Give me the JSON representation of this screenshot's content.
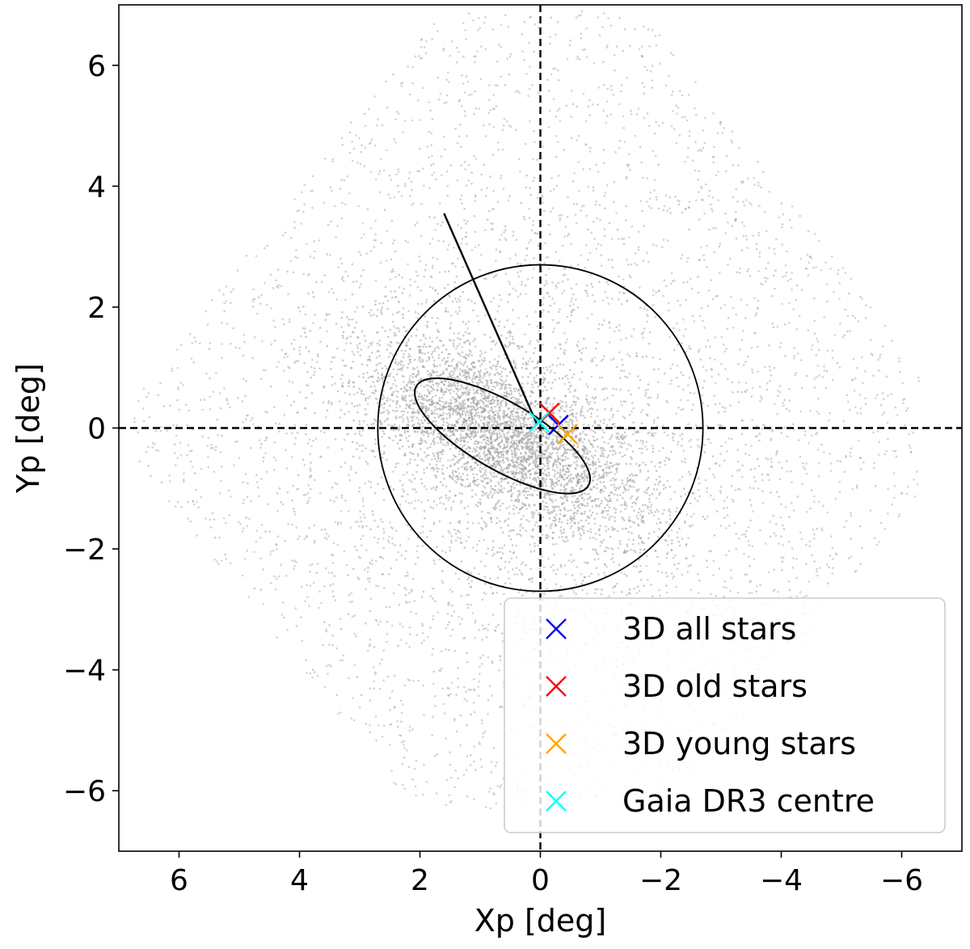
{
  "chart_data": {
    "type": "scatter",
    "xlabel": "Xp [deg]",
    "ylabel": "Yp [deg]",
    "xlim": [
      7,
      -7
    ],
    "ylim": [
      -7,
      7
    ],
    "x_inverted": true,
    "grid": false,
    "legend_position": "lower-right",
    "xticks": [
      {
        "value": 6,
        "label": "6"
      },
      {
        "value": 4,
        "label": "4"
      },
      {
        "value": 2,
        "label": "2"
      },
      {
        "value": 0,
        "label": "0"
      },
      {
        "value": -2,
        "label": "−2"
      },
      {
        "value": -4,
        "label": "−4"
      },
      {
        "value": -6,
        "label": "−6"
      }
    ],
    "yticks": [
      {
        "value": 6,
        "label": "6"
      },
      {
        "value": 4,
        "label": "4"
      },
      {
        "value": 2,
        "label": "2"
      },
      {
        "value": 0,
        "label": "0"
      },
      {
        "value": -2,
        "label": "−2"
      },
      {
        "value": -4,
        "label": "−4"
      },
      {
        "value": -6,
        "label": "−6"
      }
    ],
    "reference_lines": [
      {
        "orientation": "vertical",
        "value": 0,
        "style": "dashed",
        "color": "#000000"
      },
      {
        "orientation": "horizontal",
        "value": 0,
        "style": "dashed",
        "color": "#000000"
      }
    ],
    "background_stars": {
      "color": "#9e9e9e",
      "note_count": 9000
    },
    "circle": {
      "center": [
        0,
        0
      ],
      "radius": 2.7,
      "color": "#000000"
    },
    "ellipse": {
      "center": [
        0.63,
        -0.13
      ],
      "semi_major": 1.65,
      "semi_minor": 0.56,
      "angle_deg": -30,
      "color": "#000000"
    },
    "direction_line": {
      "from": [
        0.05,
        0.05
      ],
      "to": [
        1.6,
        3.55
      ],
      "color": "#000000"
    },
    "series": [
      {
        "name": "3D all stars",
        "color": "#0000ff",
        "x": [
          -0.3
        ],
        "y": [
          0.05
        ]
      },
      {
        "name": "3D old stars",
        "color": "#ff0000",
        "x": [
          -0.15
        ],
        "y": [
          0.25
        ]
      },
      {
        "name": "3D young stars",
        "color": "#ffa500",
        "x": [
          -0.45
        ],
        "y": [
          -0.1
        ]
      },
      {
        "name": "Gaia DR3 centre",
        "color": "#00ffff",
        "x": [
          0.02
        ],
        "y": [
          0.1
        ]
      }
    ]
  }
}
